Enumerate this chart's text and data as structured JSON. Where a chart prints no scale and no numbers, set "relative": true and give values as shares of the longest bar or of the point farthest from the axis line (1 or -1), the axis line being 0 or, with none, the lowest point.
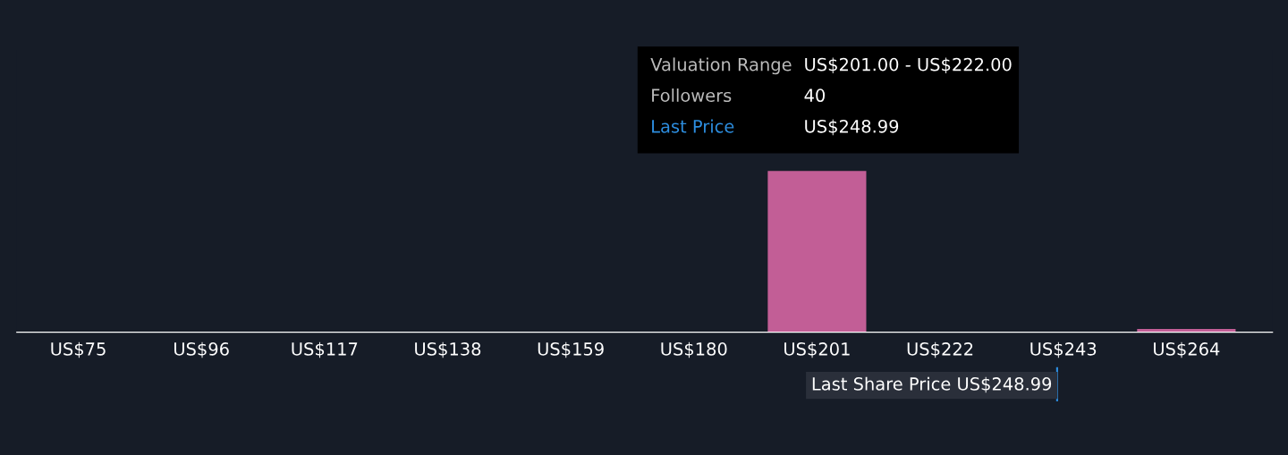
{
  "chart_data": {
    "type": "bar",
    "relative": true,
    "color": "#c25e96",
    "categories": [
      "US$75",
      "US$96",
      "US$117",
      "US$138",
      "US$159",
      "US$180",
      "US$201",
      "US$222",
      "US$243",
      "US$264"
    ],
    "values": [
      0,
      0,
      0,
      0,
      0,
      0,
      1,
      0,
      0,
      0.02
    ],
    "annotations": [
      "Valuation Range",
      "US$201.00 - US$222.00",
      "Followers",
      "40",
      "Last Price",
      "US$248.99",
      "Last Share Price US$248.99"
    ],
    "grid": false,
    "legend": false
  }
}
